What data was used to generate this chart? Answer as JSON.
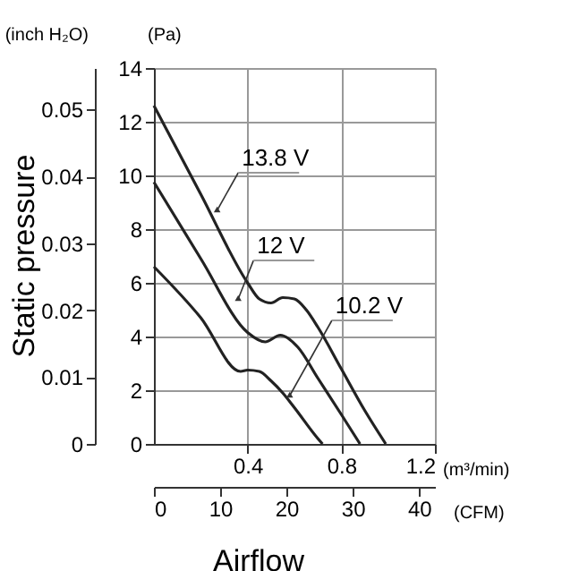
{
  "chart_data": {
    "type": "line",
    "xlabel": "(m³/min)",
    "ylabel": "(Pa)",
    "y2label": "(inch H₂O)",
    "x2label": "(CFM)",
    "xlim": [
      0,
      1.2
    ],
    "xticks": [
      0.4,
      0.8,
      1.2
    ],
    "ylim": [
      0,
      14
    ],
    "yticks": [
      0,
      2,
      4,
      6,
      8,
      10,
      12,
      14
    ],
    "y2lim": [
      0,
      0.0562
    ],
    "y2ticks": [
      0,
      0.01,
      0.02,
      0.03,
      0.04,
      0.05
    ],
    "x2lim": [
      0,
      42.4
    ],
    "x2ticks": [
      0,
      10,
      20,
      30,
      40
    ],
    "grid": true,
    "marker": "none",
    "line_style": "solid",
    "series": [
      {
        "color": "#222222",
        "x": [
          0,
          0.2,
          0.4,
          0.45,
          0.5,
          0.55,
          0.6,
          0.65,
          0.7,
          0.8,
          0.9,
          0.99
        ],
        "values": [
          12.6,
          9.3,
          6.0,
          5.4,
          5.25,
          5.45,
          5.4,
          5.0,
          4.35,
          2.8,
          1.25,
          0
        ]
      },
      {
        "color": "#222222",
        "x": [
          0,
          0.2,
          0.4,
          0.475,
          0.54,
          0.615,
          0.7,
          0.8,
          0.88
        ],
        "values": [
          9.75,
          6.9,
          4.15,
          3.8,
          4.05,
          3.6,
          2.45,
          1.1,
          0
        ]
      },
      {
        "color": "#222222",
        "x": [
          0,
          0.2,
          0.37,
          0.4,
          0.45,
          0.5,
          0.55,
          0.6,
          0.7,
          0.72
        ],
        "values": [
          6.6,
          4.7,
          2.7,
          2.75,
          2.7,
          2.35,
          1.9,
          1.35,
          0.2,
          0
        ]
      }
    ],
    "annotations": [
      {
        "text": "13.8 V",
        "x": 0.27,
        "y": 8.7
      },
      {
        "text": "12 V",
        "x": 0.36,
        "y": 5.4
      },
      {
        "text": "10.2 V",
        "x": 0.58,
        "y": 1.8
      },
      "Static pressure",
      "Airflow"
    ]
  }
}
